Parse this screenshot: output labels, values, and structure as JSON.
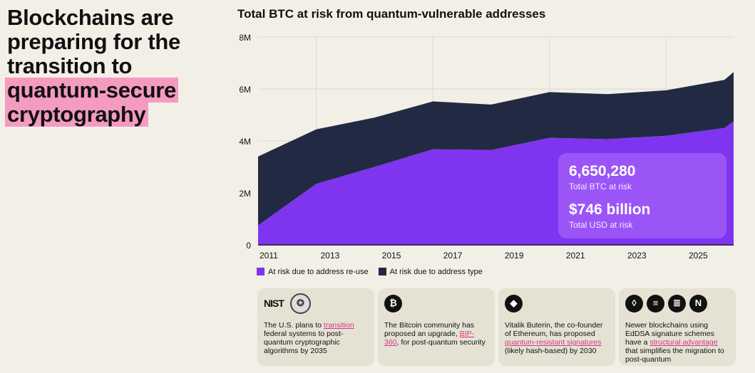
{
  "headline": {
    "line1": "Blockchains are",
    "line2": "preparing for the",
    "line3": "transition to",
    "highlight1": "quantum-secure",
    "highlight2": "cryptography"
  },
  "chart_data": {
    "type": "area",
    "stacked": true,
    "title": "Total BTC at risk from quantum-vulnerable addresses",
    "xlabel": "",
    "ylabel": "",
    "ylim": [
      0,
      8000000
    ],
    "yticks": [
      "0",
      "2M",
      "4M",
      "6M",
      "8M"
    ],
    "xticks": [
      "2011",
      "2013",
      "2015",
      "2017",
      "2019",
      "2021",
      "2023",
      "2025"
    ],
    "grid": true,
    "legend_position": "bottom-left",
    "x": [
      2010.7,
      2012.6,
      2014.5,
      2016.4,
      2018.3,
      2020.2,
      2022.1,
      2024.0,
      2025.9,
      2026.2
    ],
    "series": [
      {
        "name": "At risk due to address re-use",
        "color": "#7f35f0",
        "values": [
          750000,
          2350000,
          3000000,
          3680000,
          3650000,
          4120000,
          4070000,
          4200000,
          4500000,
          4750000
        ]
      },
      {
        "name": "At risk due to address type",
        "color": "#222a43",
        "values": [
          2650000,
          2100000,
          1900000,
          1840000,
          1750000,
          1760000,
          1730000,
          1750000,
          1850000,
          1900280
        ]
      }
    ]
  },
  "callout": {
    "btc_value": "6,650,280",
    "btc_label": "Total BTC at risk",
    "usd_value": "$746 billion",
    "usd_label": "Total USD at risk",
    "color": "#9b55f7"
  },
  "cards": [
    {
      "logo": "NIST",
      "icons": [
        "nist-seal"
      ],
      "pre": "The U.S. plans to ",
      "link": "transition",
      "post": " federal systems to post-quantum cryptographic algorithms by 2035"
    },
    {
      "icons": [
        "bitcoin"
      ],
      "pre": "The Bitcoin community has proposed an upgrade, ",
      "link": "BIP-360",
      "post": ", for post-quantum security"
    },
    {
      "icons": [
        "ethereum"
      ],
      "pre": "Vitalik Buterin, the co-founder of Ethereum, has proposed ",
      "link": "quantum-resistant signatures",
      "post": " (likely hash-based) by 2030"
    },
    {
      "icons": [
        "sui",
        "sei",
        "solana",
        "near"
      ],
      "pre": "Newer blockchains using EdDSA signature schemes have a ",
      "link": "structural advantage",
      "post": " that simplifies the migration  to post-quantum"
    }
  ]
}
